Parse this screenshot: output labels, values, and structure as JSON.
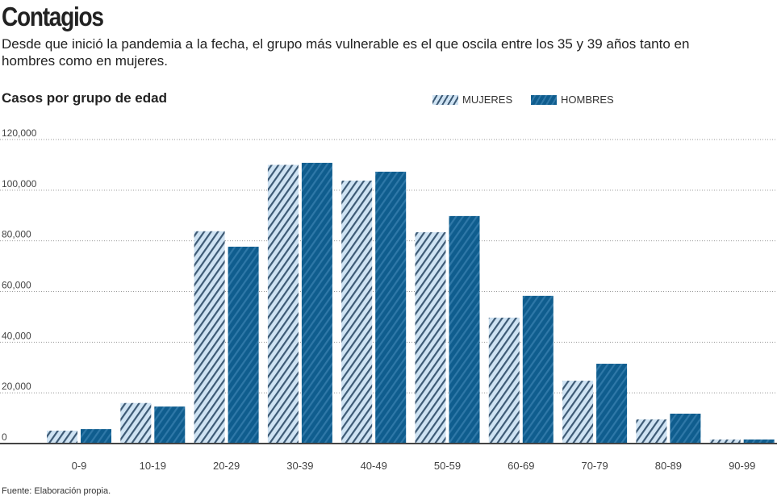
{
  "header": {
    "title": "Contagios",
    "subtitle": "Desde que inició la pandemia a la fecha, el grupo más vulnerable es el que oscila entre los 35 y 39 años tanto en hombres como en mujeres."
  },
  "footer": {
    "source": "Fuente: Elaboración propia."
  },
  "colors": {
    "mujeres_fill": "#cfe3f3",
    "mujeres_stripe": "#3d5a75",
    "hombres_fill": "#0f5d8e",
    "hombres_stripe": "#2f78a8",
    "grid": "#999999",
    "baseline": "#444444"
  },
  "chart_data": {
    "type": "bar",
    "title": "Casos por grupo de edad",
    "categories": [
      "0-9",
      "10-19",
      "20-29",
      "30-39",
      "40-49",
      "50-59",
      "60-69",
      "70-79",
      "80-89",
      "90-99"
    ],
    "series": [
      {
        "name": "MUJERES",
        "values": [
          5100,
          16000,
          83800,
          110000,
          103800,
          83400,
          49700,
          24800,
          9500,
          1600
        ]
      },
      {
        "name": "HOMBRES",
        "values": [
          5700,
          14600,
          77700,
          110800,
          107300,
          89800,
          58300,
          31500,
          11800,
          1600
        ]
      }
    ],
    "ylim": [
      0,
      120000
    ],
    "yticks": [
      "0",
      "20,000",
      "40,000",
      "60,000",
      "80,000",
      "100,000",
      "120,000"
    ],
    "ytick_values": [
      0,
      20000,
      40000,
      60000,
      80000,
      100000,
      120000
    ],
    "grid": "dotted horizontal",
    "legend": "top-right"
  }
}
